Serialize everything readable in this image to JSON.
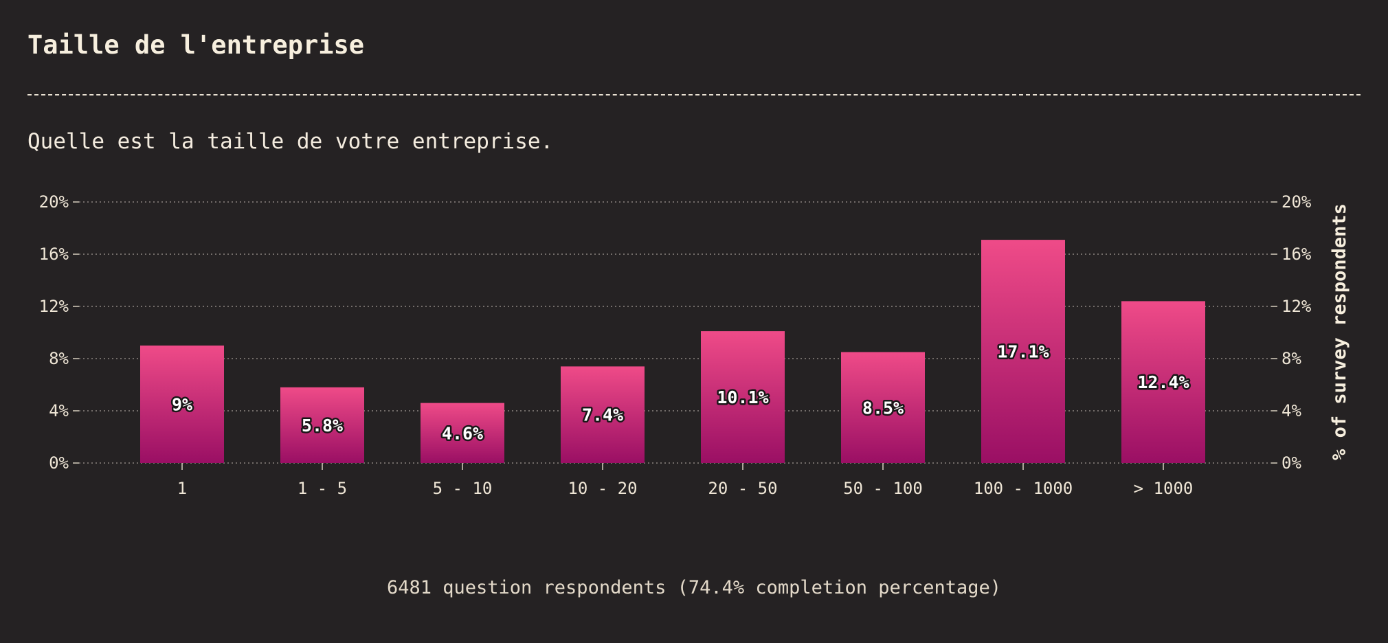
{
  "page": {
    "title": "Taille de l'entreprise",
    "question": "Quelle est la taille de votre entreprise.",
    "footer": "6481 question respondents (74.4% completion percentage)"
  },
  "colors": {
    "background": "#252223",
    "bar_top": "#ef4b88",
    "bar_bottom": "#9a0f64",
    "grid": "#8d8682",
    "text": "#f4ecdf"
  },
  "chart_data": {
    "type": "bar",
    "title": "Taille de l'entreprise",
    "subtitle": "Quelle est la taille de votre entreprise.",
    "categories": [
      "1",
      "1 - 5",
      "5 - 10",
      "10 - 20",
      "20 - 50",
      "50 - 100",
      "100 - 1000",
      "> 1000"
    ],
    "values": [
      9,
      5.8,
      4.6,
      7.4,
      10.1,
      8.5,
      17.1,
      12.4
    ],
    "value_labels": [
      "9%",
      "5.8%",
      "4.6%",
      "7.4%",
      "10.1%",
      "8.5%",
      "17.1%",
      "12.4%"
    ],
    "yticks": [
      "0%",
      "4%",
      "8%",
      "12%",
      "16%",
      "20%"
    ],
    "ylabel": "% of survey respondents",
    "ylim": [
      0,
      20
    ],
    "grid": true,
    "legend": "none"
  }
}
